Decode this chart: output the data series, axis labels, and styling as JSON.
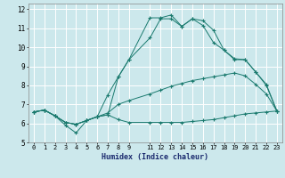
{
  "xlabel": "Humidex (Indice chaleur)",
  "xlim": [
    -0.5,
    23.5
  ],
  "ylim": [
    5,
    12.3
  ],
  "yticks": [
    5,
    6,
    7,
    8,
    9,
    10,
    11,
    12
  ],
  "xticks": [
    0,
    1,
    2,
    3,
    4,
    5,
    6,
    7,
    8,
    9,
    11,
    12,
    13,
    14,
    15,
    16,
    17,
    18,
    19,
    20,
    21,
    22,
    23
  ],
  "bg_color": "#cce8ec",
  "line_color": "#1a7a6e",
  "grid_color": "#ffffff",
  "line1_x": [
    0,
    1,
    2,
    3,
    4,
    5,
    6,
    7,
    8,
    9,
    11,
    12,
    13,
    14,
    15,
    16,
    17,
    18,
    19,
    20,
    21,
    22,
    23
  ],
  "line1_y": [
    6.6,
    6.7,
    6.4,
    6.05,
    5.95,
    6.15,
    6.35,
    6.45,
    6.2,
    6.05,
    6.05,
    6.05,
    6.05,
    6.05,
    6.1,
    6.15,
    6.2,
    6.3,
    6.4,
    6.5,
    6.55,
    6.6,
    6.65
  ],
  "line2_x": [
    0,
    1,
    2,
    3,
    4,
    5,
    6,
    7,
    8,
    9,
    11,
    12,
    13,
    14,
    15,
    16,
    17,
    18,
    19,
    20,
    21,
    22,
    23
  ],
  "line2_y": [
    6.6,
    6.7,
    6.4,
    6.05,
    5.95,
    6.15,
    6.35,
    6.55,
    7.0,
    7.2,
    7.55,
    7.75,
    7.95,
    8.1,
    8.25,
    8.35,
    8.45,
    8.55,
    8.65,
    8.5,
    8.05,
    7.55,
    6.65
  ],
  "line3_x": [
    0,
    1,
    2,
    3,
    4,
    5,
    6,
    7,
    8,
    9,
    11,
    12,
    13,
    14,
    15,
    16,
    17,
    18,
    19,
    20,
    21,
    22,
    23
  ],
  "line3_y": [
    6.6,
    6.7,
    6.4,
    6.05,
    5.95,
    6.15,
    6.35,
    7.5,
    8.45,
    9.35,
    10.5,
    11.5,
    11.5,
    11.1,
    11.5,
    11.15,
    10.25,
    9.85,
    9.4,
    9.35,
    8.7,
    8.0,
    6.65
  ],
  "line4_x": [
    0,
    1,
    2,
    3,
    4,
    5,
    6,
    7,
    8,
    9,
    11,
    12,
    13,
    14,
    15,
    16,
    17,
    18,
    19,
    20,
    21,
    22,
    23
  ],
  "line4_y": [
    6.6,
    6.7,
    6.4,
    5.9,
    5.5,
    6.15,
    6.35,
    6.45,
    8.45,
    9.35,
    11.55,
    11.55,
    11.7,
    11.1,
    11.5,
    11.4,
    10.9,
    9.85,
    9.35,
    9.35,
    8.7,
    8.05,
    6.65
  ]
}
